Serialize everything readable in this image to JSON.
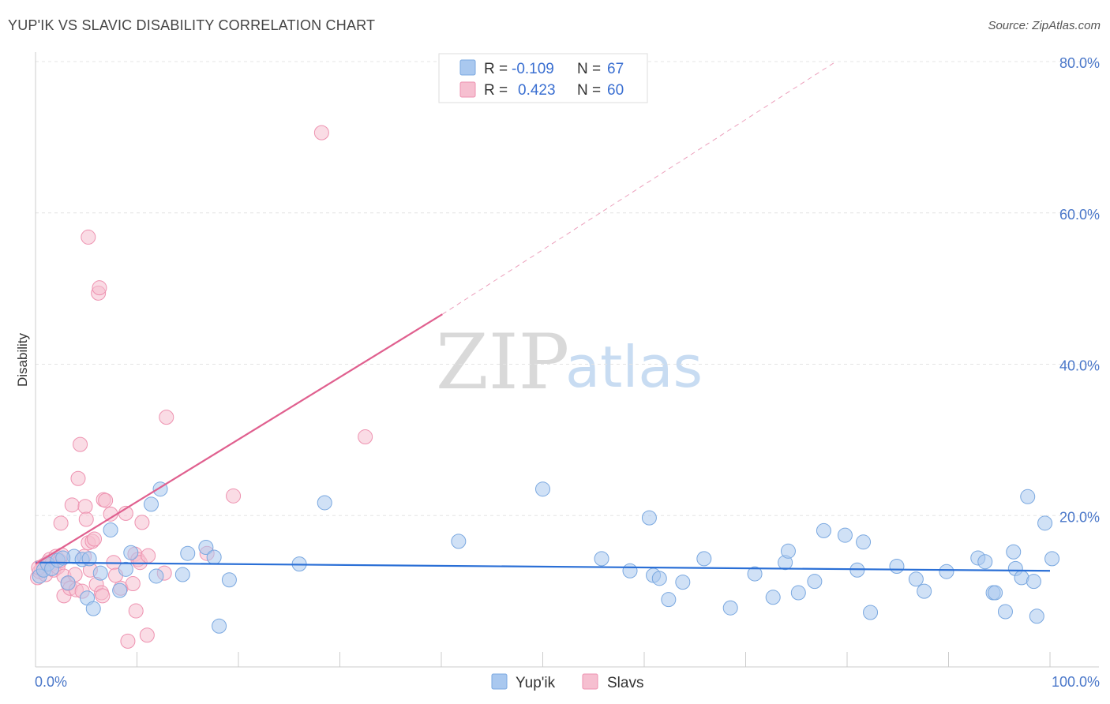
{
  "title": "YUP'IK VS SLAVIC DISABILITY CORRELATION CHART",
  "source": "Source: ZipAtlas.com",
  "watermark": {
    "zip": "ZIP",
    "atlas": "atlas"
  },
  "legend": {
    "rows": [
      {
        "r_label": "R =",
        "r_value": "-0.109",
        "n_label": "N =",
        "n_value": "67"
      },
      {
        "r_label": "R =",
        "r_value": "0.423",
        "n_label": "N =",
        "n_value": "60"
      }
    ]
  },
  "bottom_legend": [
    "Yup'ik",
    "Slavs"
  ],
  "colors": {
    "blue_fill": "#a9c8ef",
    "blue_stroke": "#7aa8e0",
    "blue_line": "#2a6fd6",
    "pink_fill": "#f6bfd0",
    "pink_stroke": "#ee92b0",
    "pink_line": "#e0608f",
    "grid": "#e4e4e4",
    "axis": "#cccccc"
  },
  "chart_data": {
    "type": "scatter",
    "title": "YUP'IK VS SLAVIC DISABILITY CORRELATION CHART",
    "xlabel": "",
    "ylabel": "Disability",
    "xlim": [
      0,
      100
    ],
    "ylim": [
      0,
      80
    ],
    "x_tick_labels": [
      "0.0%",
      "100.0%"
    ],
    "y_tick_labels": [
      "20.0%",
      "40.0%",
      "60.0%",
      "80.0%"
    ],
    "y_ticks": [
      20,
      40,
      60,
      80
    ],
    "grid": true,
    "series": [
      {
        "name": "Yup'ik",
        "r": -0.109,
        "n": 67,
        "trend": {
          "x": [
            0,
            100
          ],
          "y": [
            13.8,
            12.7
          ],
          "dashed_extension": false
        },
        "points": [
          {
            "x": 0.4,
            "y": 12.0
          },
          {
            "x": 0.8,
            "y": 12.8
          },
          {
            "x": 1.2,
            "y": 13.6
          },
          {
            "x": 1.6,
            "y": 13.0
          },
          {
            "x": 2.2,
            "y": 14.1
          },
          {
            "x": 3.2,
            "y": 11.1
          },
          {
            "x": 3.8,
            "y": 14.6
          },
          {
            "x": 4.6,
            "y": 14.2
          },
          {
            "x": 5.1,
            "y": 9.1
          },
          {
            "x": 5.3,
            "y": 14.3
          },
          {
            "x": 5.7,
            "y": 7.7
          },
          {
            "x": 6.4,
            "y": 12.4
          },
          {
            "x": 7.4,
            "y": 18.1
          },
          {
            "x": 8.3,
            "y": 10.1
          },
          {
            "x": 8.9,
            "y": 12.9
          },
          {
            "x": 9.4,
            "y": 15.1
          },
          {
            "x": 11.4,
            "y": 21.5
          },
          {
            "x": 11.9,
            "y": 12.0
          },
          {
            "x": 12.3,
            "y": 23.5
          },
          {
            "x": 14.5,
            "y": 12.2
          },
          {
            "x": 15.0,
            "y": 15.0
          },
          {
            "x": 16.8,
            "y": 15.8
          },
          {
            "x": 17.6,
            "y": 14.5
          },
          {
            "x": 18.1,
            "y": 5.4
          },
          {
            "x": 19.1,
            "y": 11.5
          },
          {
            "x": 26.0,
            "y": 13.6
          },
          {
            "x": 28.5,
            "y": 21.7
          },
          {
            "x": 41.7,
            "y": 16.6
          },
          {
            "x": 50.0,
            "y": 23.5
          },
          {
            "x": 55.8,
            "y": 14.3
          },
          {
            "x": 58.6,
            "y": 12.7
          },
          {
            "x": 60.5,
            "y": 19.7
          },
          {
            "x": 60.9,
            "y": 12.1
          },
          {
            "x": 61.5,
            "y": 11.7
          },
          {
            "x": 62.4,
            "y": 8.9
          },
          {
            "x": 63.8,
            "y": 11.2
          },
          {
            "x": 65.9,
            "y": 14.3
          },
          {
            "x": 68.5,
            "y": 7.8
          },
          {
            "x": 70.9,
            "y": 12.3
          },
          {
            "x": 72.7,
            "y": 9.2
          },
          {
            "x": 73.9,
            "y": 13.8
          },
          {
            "x": 74.2,
            "y": 15.3
          },
          {
            "x": 75.2,
            "y": 9.8
          },
          {
            "x": 76.8,
            "y": 11.3
          },
          {
            "x": 77.7,
            "y": 18.0
          },
          {
            "x": 79.8,
            "y": 17.4
          },
          {
            "x": 81.0,
            "y": 12.8
          },
          {
            "x": 81.6,
            "y": 16.5
          },
          {
            "x": 82.3,
            "y": 7.2
          },
          {
            "x": 84.9,
            "y": 13.3
          },
          {
            "x": 86.8,
            "y": 11.6
          },
          {
            "x": 87.6,
            "y": 10.0
          },
          {
            "x": 89.8,
            "y": 12.6
          },
          {
            "x": 92.9,
            "y": 14.4
          },
          {
            "x": 93.6,
            "y": 13.9
          },
          {
            "x": 94.4,
            "y": 9.8
          },
          {
            "x": 94.6,
            "y": 9.8
          },
          {
            "x": 95.6,
            "y": 7.3
          },
          {
            "x": 96.4,
            "y": 15.2
          },
          {
            "x": 96.6,
            "y": 13.0
          },
          {
            "x": 97.2,
            "y": 11.8
          },
          {
            "x": 97.8,
            "y": 22.5
          },
          {
            "x": 98.4,
            "y": 11.3
          },
          {
            "x": 98.7,
            "y": 6.7
          },
          {
            "x": 99.5,
            "y": 19.0
          },
          {
            "x": 100.2,
            "y": 14.3
          },
          {
            "x": 2.7,
            "y": 14.4
          }
        ]
      },
      {
        "name": "Slavs",
        "r": 0.423,
        "n": 60,
        "trend": {
          "x": [
            0,
            40.1
          ],
          "y": [
            13.6,
            46.6
          ],
          "dashed_extension": {
            "x": [
              40.1,
              78.9
            ],
            "y": [
              46.6,
              80.0
            ]
          }
        },
        "points": [
          {
            "x": 0.2,
            "y": 11.8
          },
          {
            "x": 0.4,
            "y": 12.6
          },
          {
            "x": 0.6,
            "y": 13.0
          },
          {
            "x": 0.8,
            "y": 13.4
          },
          {
            "x": 1.0,
            "y": 12.2
          },
          {
            "x": 1.2,
            "y": 13.8
          },
          {
            "x": 1.4,
            "y": 14.2
          },
          {
            "x": 1.6,
            "y": 13.6
          },
          {
            "x": 1.8,
            "y": 12.8
          },
          {
            "x": 2.0,
            "y": 14.6
          },
          {
            "x": 2.2,
            "y": 13.2
          },
          {
            "x": 2.4,
            "y": 14.0
          },
          {
            "x": 2.6,
            "y": 14.8
          },
          {
            "x": 2.8,
            "y": 12.0
          },
          {
            "x": 2.5,
            "y": 19.0
          },
          {
            "x": 2.8,
            "y": 9.4
          },
          {
            "x": 3.2,
            "y": 11.0
          },
          {
            "x": 3.4,
            "y": 10.4
          },
          {
            "x": 3.6,
            "y": 21.4
          },
          {
            "x": 3.9,
            "y": 12.2
          },
          {
            "x": 4.0,
            "y": 10.2
          },
          {
            "x": 4.2,
            "y": 24.9
          },
          {
            "x": 4.4,
            "y": 29.4
          },
          {
            "x": 4.6,
            "y": 10.0
          },
          {
            "x": 4.8,
            "y": 14.6
          },
          {
            "x": 4.9,
            "y": 21.2
          },
          {
            "x": 5.0,
            "y": 19.5
          },
          {
            "x": 5.2,
            "y": 16.4
          },
          {
            "x": 5.2,
            "y": 56.8
          },
          {
            "x": 5.4,
            "y": 12.8
          },
          {
            "x": 5.6,
            "y": 16.6
          },
          {
            "x": 5.8,
            "y": 16.9
          },
          {
            "x": 6.0,
            "y": 10.9
          },
          {
            "x": 6.2,
            "y": 49.4
          },
          {
            "x": 6.3,
            "y": 50.1
          },
          {
            "x": 6.5,
            "y": 9.8
          },
          {
            "x": 6.6,
            "y": 9.4
          },
          {
            "x": 6.7,
            "y": 22.1
          },
          {
            "x": 6.9,
            "y": 22.0
          },
          {
            "x": 7.4,
            "y": 20.2
          },
          {
            "x": 7.7,
            "y": 13.8
          },
          {
            "x": 7.9,
            "y": 12.1
          },
          {
            "x": 8.4,
            "y": 10.4
          },
          {
            "x": 8.9,
            "y": 20.3
          },
          {
            "x": 9.1,
            "y": 3.4
          },
          {
            "x": 9.6,
            "y": 11.0
          },
          {
            "x": 9.8,
            "y": 14.9
          },
          {
            "x": 9.9,
            "y": 7.4
          },
          {
            "x": 10.1,
            "y": 14.2
          },
          {
            "x": 10.3,
            "y": 13.8
          },
          {
            "x": 10.5,
            "y": 19.1
          },
          {
            "x": 11.0,
            "y": 4.2
          },
          {
            "x": 11.1,
            "y": 14.7
          },
          {
            "x": 12.7,
            "y": 12.4
          },
          {
            "x": 12.9,
            "y": 33.0
          },
          {
            "x": 16.9,
            "y": 15.0
          },
          {
            "x": 19.5,
            "y": 22.6
          },
          {
            "x": 28.2,
            "y": 70.6
          },
          {
            "x": 32.5,
            "y": 30.4
          },
          {
            "x": 0.3,
            "y": 13.1
          }
        ]
      }
    ]
  }
}
